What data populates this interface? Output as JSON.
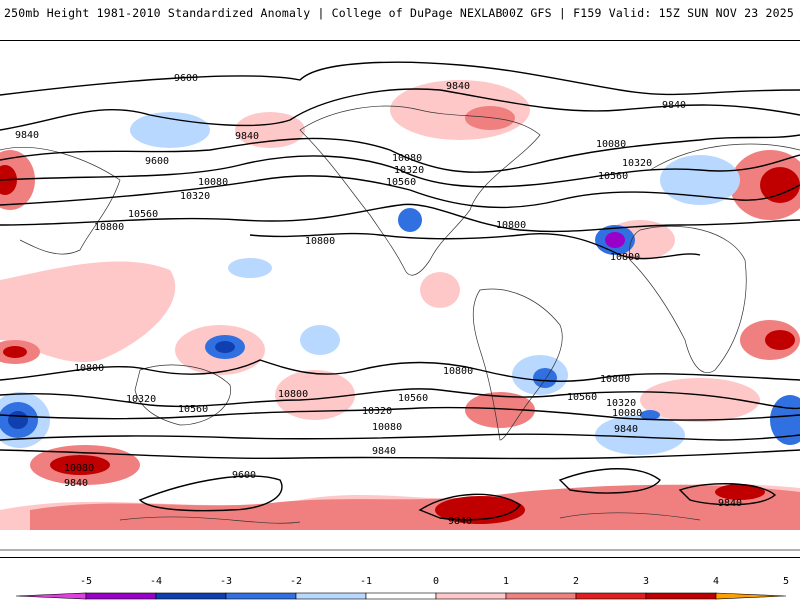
{
  "header": {
    "left": "250mb Height 1981-2010 Standardized Anomaly | College of DuPage NEXLAB",
    "right": "00Z GFS | F159 Valid: 15Z SUN NOV 23 2025"
  },
  "contour_labels": [
    "9600",
    "9840",
    "10080",
    "10320",
    "10560",
    "10800"
  ],
  "colorbar": {
    "ticks": [
      "-5",
      "-4",
      "-3",
      "-2",
      "-1",
      "0",
      "1",
      "2",
      "3",
      "4",
      "5"
    ],
    "colors": [
      "#e040e0",
      "#9a00c8",
      "#1040b0",
      "#3070e0",
      "#b8d8ff",
      "#ffffff",
      "#ffc8c8",
      "#f08080",
      "#e02020",
      "#c00000",
      "#ffa000"
    ]
  }
}
